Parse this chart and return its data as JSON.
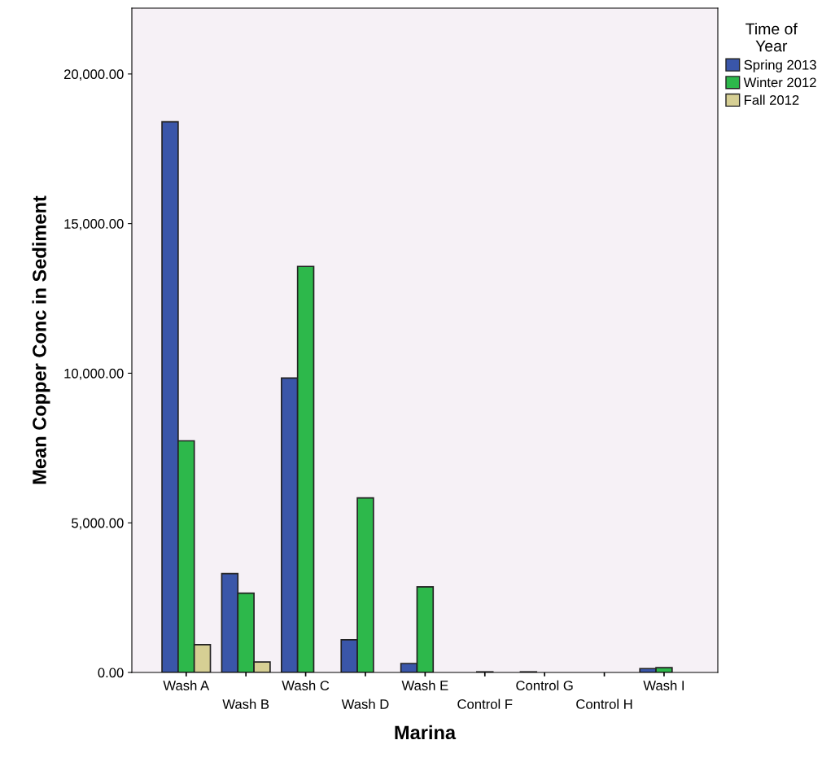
{
  "chart_data": {
    "type": "bar",
    "xlabel": "Marina",
    "ylabel": "Mean Copper Conc in Sediment",
    "legend_title": "Time of\nYear",
    "categories": [
      "Wash A",
      "Wash B",
      "Wash C",
      "Wash D",
      "Wash E",
      "Control F",
      "Control G",
      "Control H",
      "Wash I"
    ],
    "series": [
      {
        "name": "Spring 2013",
        "color": "#3a56a9",
        "values": [
          18400,
          3300,
          9840,
          1090,
          300,
          null,
          20,
          null,
          130
        ]
      },
      {
        "name": "Winter 2012",
        "color": "#2db84b",
        "values": [
          7740,
          2650,
          13570,
          5830,
          2860,
          20,
          null,
          null,
          160
        ]
      },
      {
        "name": "Fall 2012",
        "color": "#d6cf94",
        "values": [
          930,
          350,
          null,
          null,
          null,
          null,
          null,
          null,
          null
        ]
      }
    ],
    "ylim": [
      0,
      22200
    ],
    "yticks": [
      {
        "value": 0,
        "label": "0.00"
      },
      {
        "value": 5000,
        "label": "5,000.00"
      },
      {
        "value": 10000,
        "label": "10,000.00"
      },
      {
        "value": 15000,
        "label": "15,000.00"
      },
      {
        "value": 20000,
        "label": "20,000.00"
      }
    ],
    "grid": false,
    "legend": "right"
  }
}
